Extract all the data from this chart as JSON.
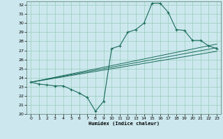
{
  "xlabel": "Humidex (Indice chaleur)",
  "bg_color": "#cce8ee",
  "grid_color": "#99ccbb",
  "line_color": "#1a6b5a",
  "xlim": [
    -0.5,
    23.5
  ],
  "ylim": [
    20,
    32.4
  ],
  "xticks": [
    0,
    1,
    2,
    3,
    4,
    5,
    6,
    7,
    8,
    9,
    10,
    11,
    12,
    13,
    14,
    15,
    16,
    17,
    18,
    19,
    20,
    21,
    22,
    23
  ],
  "yticks": [
    20,
    21,
    22,
    23,
    24,
    25,
    26,
    27,
    28,
    29,
    30,
    31,
    32
  ],
  "line1_x": [
    0,
    1,
    2,
    3,
    4,
    5,
    6,
    7,
    8,
    9,
    10,
    11,
    12,
    13,
    14,
    15,
    16,
    17,
    18,
    19,
    20,
    21,
    22,
    23
  ],
  "line1_y": [
    23.5,
    23.3,
    23.2,
    23.1,
    23.1,
    22.7,
    22.3,
    21.8,
    20.3,
    21.4,
    27.2,
    27.5,
    29.0,
    29.3,
    30.0,
    32.2,
    32.2,
    31.2,
    29.3,
    29.2,
    28.1,
    28.1,
    27.5,
    27.2
  ],
  "line2_x": [
    0,
    23
  ],
  "line2_y": [
    23.5,
    27.7
  ],
  "line3_x": [
    0,
    23
  ],
  "line3_y": [
    23.5,
    27.3
  ],
  "line4_x": [
    0,
    23
  ],
  "line4_y": [
    23.5,
    26.9
  ]
}
